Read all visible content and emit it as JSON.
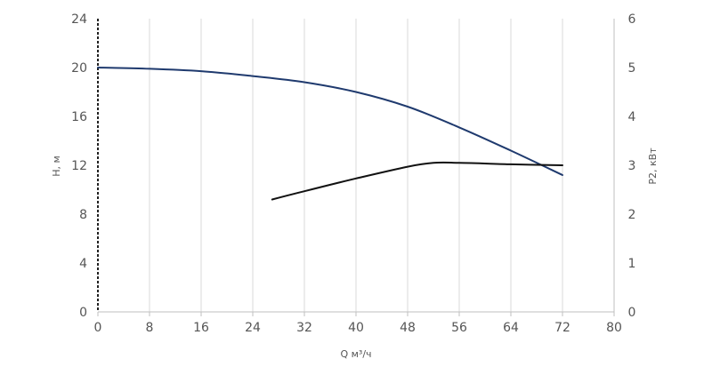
{
  "chart_data": {
    "type": "line",
    "xlabel": "Q м³/ч",
    "ylabel_left": "H, м",
    "ylabel_right": "P2, кВт",
    "xlim": [
      0,
      80
    ],
    "ylim_left": [
      0,
      24
    ],
    "ylim_right": [
      0,
      6
    ],
    "x_ticks": [
      "0",
      "8",
      "16",
      "24",
      "32",
      "40",
      "48",
      "56",
      "64",
      "72",
      "80"
    ],
    "y_left_ticks": [
      "0",
      "4",
      "8",
      "12",
      "16",
      "20",
      "24"
    ],
    "y_right_ticks": [
      "0",
      "1",
      "2",
      "3",
      "4",
      "5",
      "6"
    ],
    "grid": "vertical",
    "series": [
      {
        "axis": "left",
        "color": "#1f3a6e",
        "x": [
          0,
          8,
          16,
          24,
          32,
          40,
          48,
          56,
          64,
          72
        ],
        "y": [
          20.0,
          19.9,
          19.7,
          19.3,
          18.8,
          18.0,
          16.8,
          15.1,
          13.2,
          11.2
        ]
      },
      {
        "axis": "right",
        "color": "#111111",
        "x": [
          27,
          32,
          40,
          48,
          52,
          56,
          64,
          72
        ],
        "y": [
          2.3,
          2.47,
          2.73,
          2.97,
          3.05,
          3.05,
          3.02,
          3.0
        ]
      }
    ]
  }
}
